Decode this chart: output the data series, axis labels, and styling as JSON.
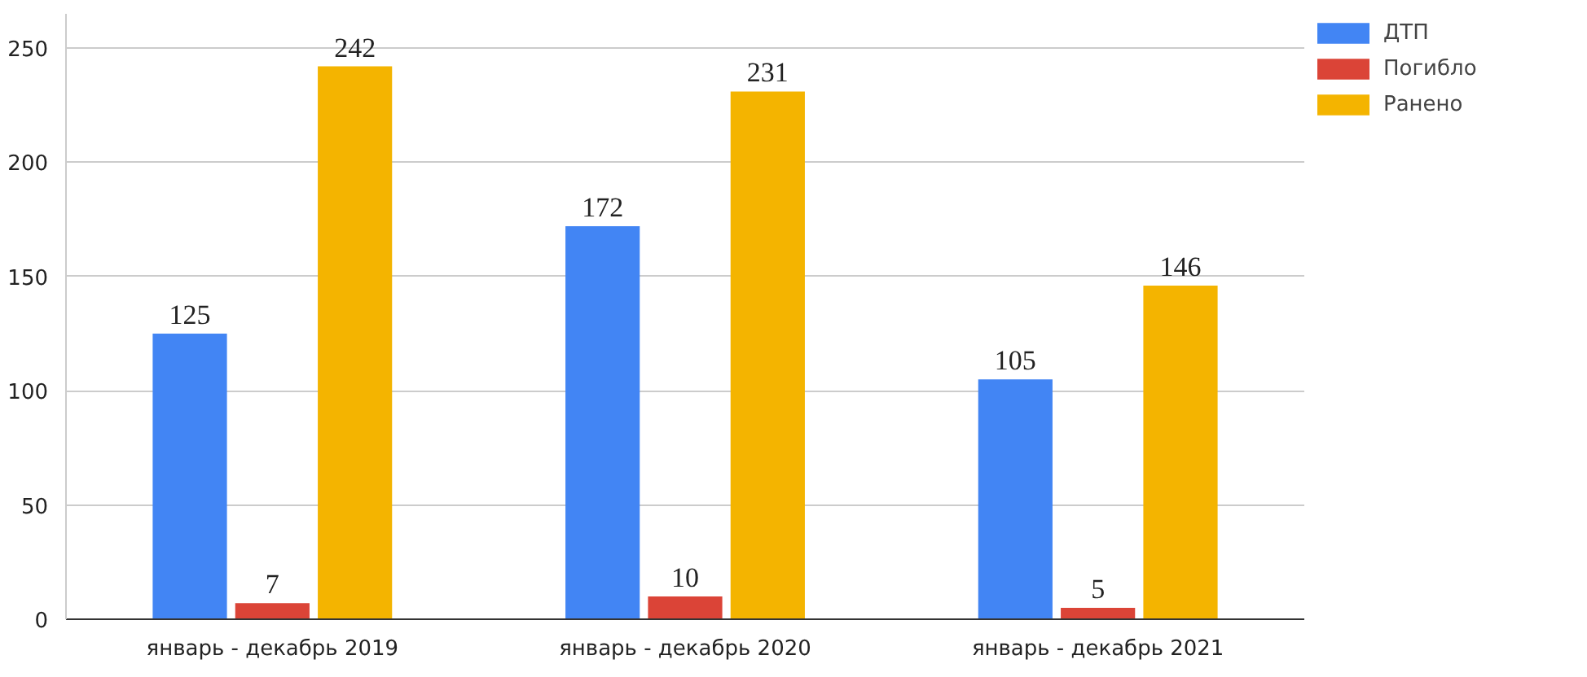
{
  "chart_data": {
    "type": "bar",
    "categories": [
      "январь - декабрь 2019",
      "январь - декабрь 2020",
      "январь - декабрь 2021"
    ],
    "series": [
      {
        "name": "ДТП",
        "color": "#4285f4",
        "values": [
          125,
          172,
          105
        ]
      },
      {
        "name": "Погибло",
        "color": "#db4437",
        "values": [
          7,
          10,
          5
        ]
      },
      {
        "name": "Ранено",
        "color": "#f4b400",
        "values": [
          242,
          231,
          146
        ]
      }
    ],
    "ylim": [
      0,
      265
    ],
    "yticks": [
      0,
      50,
      100,
      150,
      200,
      250
    ],
    "grid": "y",
    "legend": "right",
    "data_labels": true
  }
}
